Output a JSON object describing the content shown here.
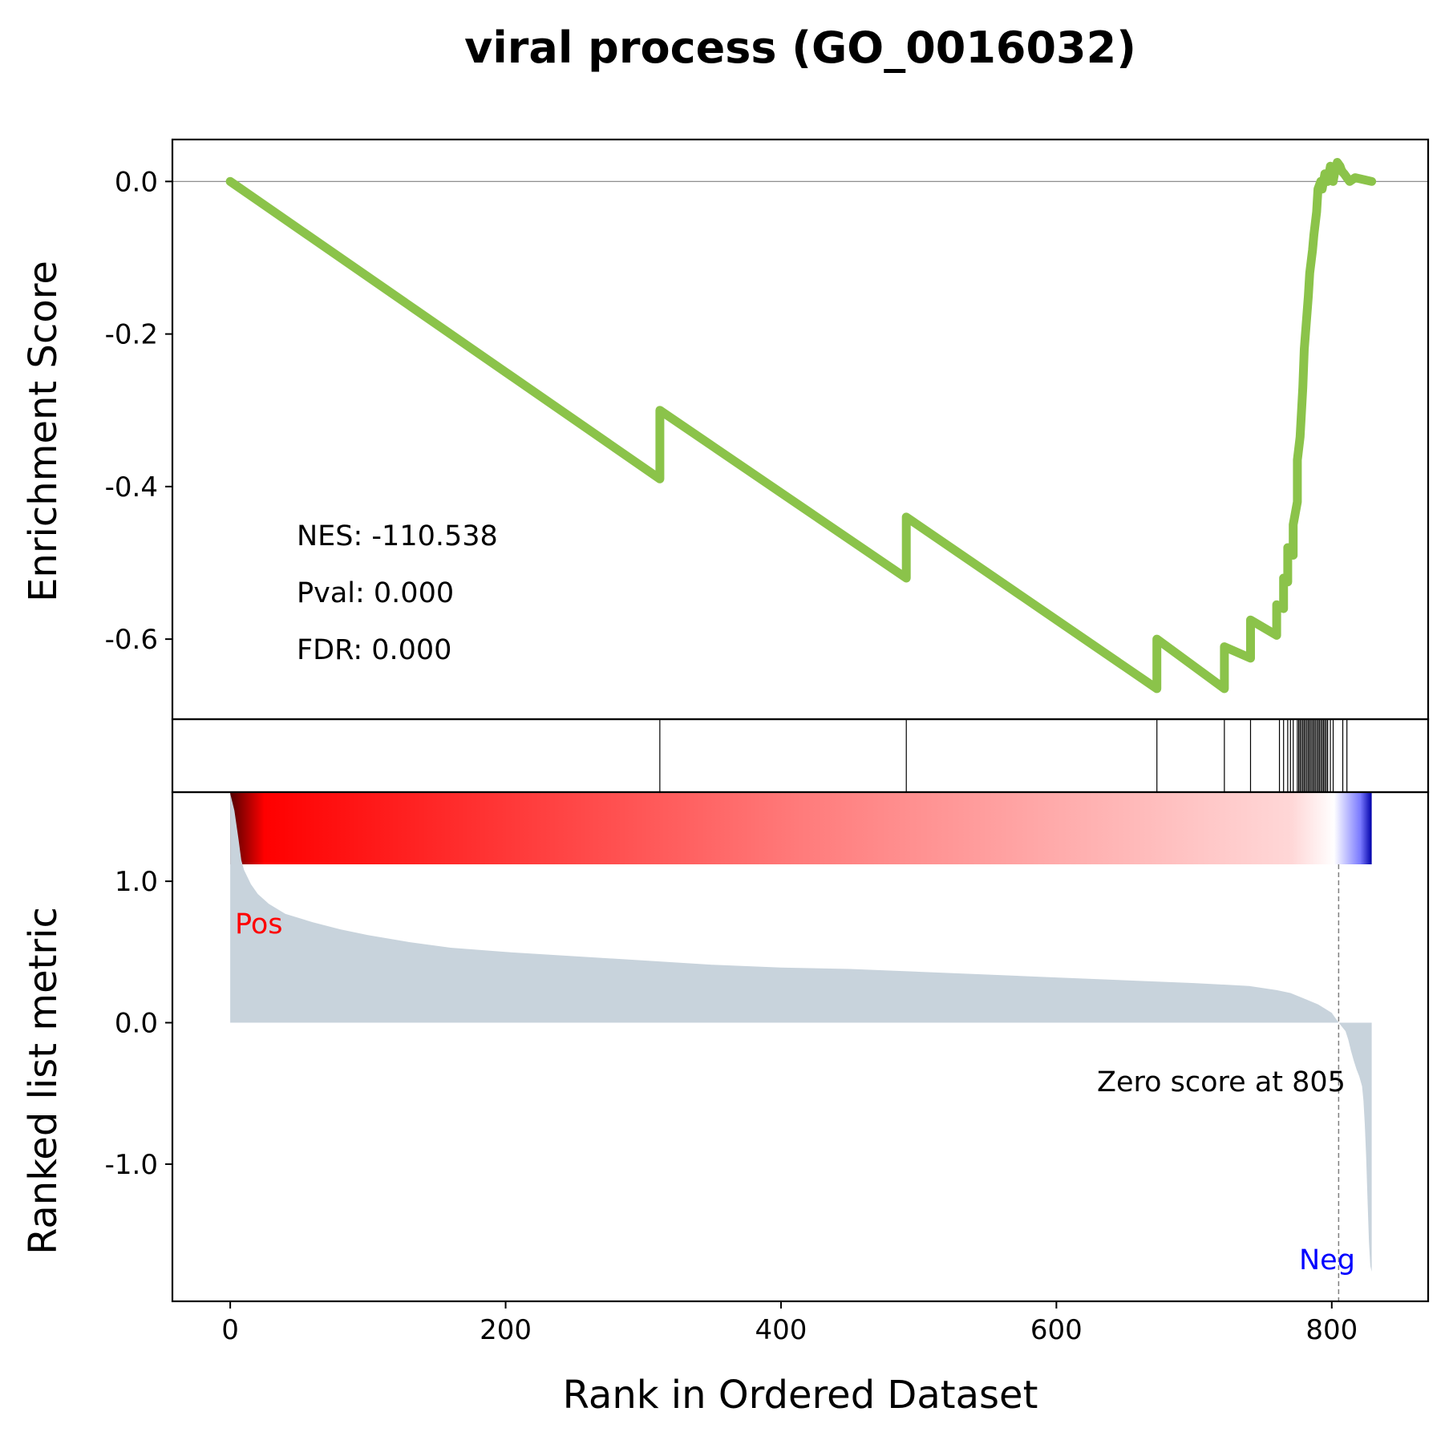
{
  "chart_data": {
    "type": "line",
    "title": "viral process (GO_0016032)",
    "xlabel": "Rank in Ordered Dataset",
    "es_panel": {
      "ylabel": "Enrichment Score",
      "ylim": [
        -0.705,
        0.055
      ],
      "yticks": [
        0.0,
        -0.2,
        -0.4,
        -0.6
      ],
      "ytick_labels": [
        "0.0",
        "-0.2",
        "-0.4",
        "-0.6"
      ],
      "line_color": "#8bc34a",
      "zero_line": true,
      "annotations": [
        "NES: -110.538",
        "Pval: 0.000",
        "FDR: 0.000"
      ],
      "es_curve": {
        "x": [
          0,
          312,
          312,
          491,
          491,
          673,
          673,
          722,
          722,
          741,
          741,
          760,
          760,
          765,
          765,
          768,
          768,
          772,
          772,
          775,
          775,
          777,
          779,
          780,
          783,
          784,
          786,
          787,
          789,
          790,
          792,
          793,
          795,
          797,
          799,
          801,
          802,
          804,
          806,
          807,
          808,
          809,
          811,
          813,
          817,
          829
        ],
        "y": [
          0.0,
          -0.39,
          -0.3,
          -0.52,
          -0.44,
          -0.665,
          -0.6,
          -0.665,
          -0.61,
          -0.625,
          -0.575,
          -0.595,
          -0.555,
          -0.56,
          -0.52,
          -0.525,
          -0.48,
          -0.49,
          -0.45,
          -0.42,
          -0.365,
          -0.335,
          -0.27,
          -0.22,
          -0.15,
          -0.12,
          -0.09,
          -0.07,
          -0.04,
          -0.01,
          0.0,
          -0.01,
          0.01,
          0.0,
          0.02,
          0.0,
          0.01,
          0.025,
          0.02,
          0.015,
          0.012,
          0.01,
          0.005,
          0.0,
          0.005,
          0.0
        ]
      }
    },
    "hits_panel": {
      "hit_ranks": [
        312,
        491,
        673,
        722,
        741,
        762,
        765,
        768,
        770,
        772,
        775,
        776,
        777,
        778,
        779,
        780,
        781,
        782,
        783,
        784,
        785,
        786,
        787,
        788,
        789,
        790,
        791,
        792,
        793,
        794,
        795,
        796,
        797,
        799,
        801,
        808,
        811
      ]
    },
    "ranked_metric_panel": {
      "ylabel": "Ranked list metric",
      "ylim": [
        -1.97,
        1.63
      ],
      "yticks": [
        1.0,
        0.0,
        -1.0
      ],
      "ytick_labels": [
        "1.0",
        "0.0",
        "-1.0"
      ],
      "fill_color": "#c8d3dc",
      "colorbar": {
        "low": "#0000ff",
        "mid": "#ffffff",
        "high": "#ff0000"
      },
      "pos_label": "Pos",
      "neg_label": "Neg",
      "pos_color": "#ff0000",
      "neg_color": "#0000ff",
      "zero_cross_rank": 805,
      "zero_cross_text": "Zero score at 805",
      "metric_curve": {
        "x": [
          0,
          3,
          6,
          8,
          10,
          15,
          20,
          28,
          40,
          60,
          80,
          100,
          130,
          160,
          200,
          250,
          300,
          350,
          400,
          450,
          500,
          550,
          600,
          650,
          700,
          740,
          760,
          770,
          780,
          790,
          800,
          805,
          810,
          812,
          814,
          816,
          818,
          820,
          822,
          823,
          824,
          825,
          826,
          827,
          828,
          829
        ],
        "y": [
          1.62,
          1.5,
          1.3,
          1.15,
          1.08,
          0.98,
          0.91,
          0.84,
          0.77,
          0.71,
          0.66,
          0.62,
          0.57,
          0.53,
          0.5,
          0.47,
          0.44,
          0.41,
          0.39,
          0.38,
          0.36,
          0.34,
          0.32,
          0.3,
          0.28,
          0.26,
          0.23,
          0.21,
          0.17,
          0.13,
          0.07,
          0.0,
          -0.06,
          -0.12,
          -0.2,
          -0.27,
          -0.33,
          -0.38,
          -0.45,
          -0.55,
          -0.72,
          -0.95,
          -1.25,
          -1.55,
          -1.72,
          -1.76
        ]
      }
    },
    "xlim": [
      -42,
      870
    ],
    "xticks": [
      0,
      200,
      400,
      600,
      800
    ],
    "xtick_labels": [
      "0",
      "200",
      "400",
      "600",
      "800"
    ]
  }
}
